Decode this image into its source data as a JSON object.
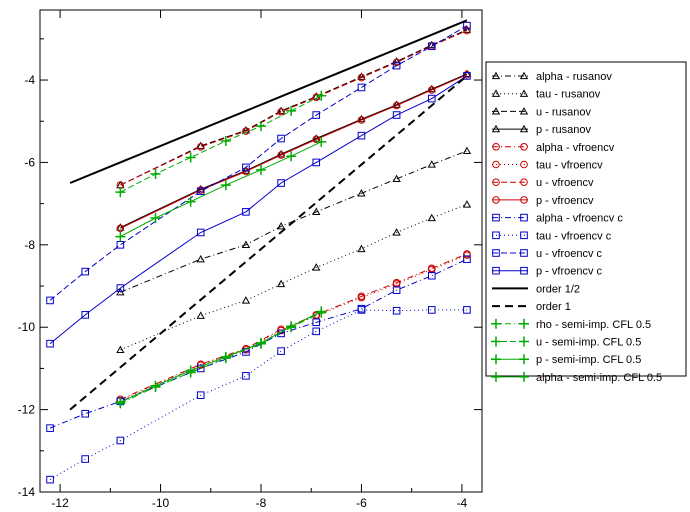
{
  "chart_data": {
    "type": "line",
    "title": "",
    "xlabel": "",
    "ylabel": "",
    "xlim": [
      -12.4,
      -3.6
    ],
    "ylim": [
      -14,
      -2.3
    ],
    "xticks": [
      -12,
      -10,
      -8,
      -6,
      -4
    ],
    "yticks": [
      -14,
      -12,
      -10,
      -8,
      -6,
      -4
    ],
    "grid": false,
    "legend_position": "right-outside",
    "series": [
      {
        "name": "alpha - rusanov",
        "color": "#000000",
        "dash": "6,3,1,3",
        "marker": "triangle",
        "x": [
          -10.8,
          -9.2,
          -8.3,
          -7.6,
          -6.9,
          -6.0,
          -5.3,
          -4.6,
          -3.9
        ],
        "y": [
          -9.15,
          -8.35,
          -8.0,
          -7.55,
          -7.2,
          -6.75,
          -6.4,
          -6.05,
          -5.72
        ]
      },
      {
        "name": "tau - rusanov",
        "color": "#000000",
        "dash": "1,3",
        "marker": "triangle",
        "x": [
          -10.8,
          -9.2,
          -8.3,
          -7.6,
          -6.9,
          -6.0,
          -5.3,
          -4.6,
          -3.9
        ],
        "y": [
          -10.55,
          -9.72,
          -9.35,
          -8.95,
          -8.55,
          -8.1,
          -7.7,
          -7.35,
          -7.02
        ]
      },
      {
        "name": "u - rusanov",
        "color": "#000000",
        "dash": "6,3",
        "marker": "triangle",
        "x": [
          -10.8,
          -9.2,
          -8.3,
          -7.6,
          -6.9,
          -6.0,
          -5.3,
          -4.6,
          -3.9
        ],
        "y": [
          -6.55,
          -5.6,
          -5.22,
          -4.75,
          -4.4,
          -3.92,
          -3.55,
          -3.15,
          -2.78
        ]
      },
      {
        "name": "p - rusanov",
        "color": "#000000",
        "dash": "",
        "marker": "triangle",
        "x": [
          -10.8,
          -9.2,
          -8.3,
          -7.6,
          -6.9,
          -6.0,
          -5.3,
          -4.6,
          -3.9
        ],
        "y": [
          -7.58,
          -6.65,
          -6.2,
          -5.8,
          -5.42,
          -4.95,
          -4.6,
          -4.22,
          -3.85
        ]
      },
      {
        "name": "alpha - vfroencv",
        "color": "#cc0000",
        "dash": "6,3,1,3",
        "marker": "circle",
        "x": [
          -10.8,
          -9.2,
          -8.3,
          -7.6,
          -6.9,
          -6.0,
          -5.3,
          -4.6,
          -3.9
        ],
        "y": [
          -11.75,
          -10.9,
          -10.52,
          -10.05,
          -9.7,
          -9.25,
          -8.92,
          -8.57,
          -8.22
        ]
      },
      {
        "name": "tau - vfroencv",
        "color": "#cc0000",
        "dash": "1,3",
        "marker": "circle",
        "x": [
          -10.8,
          -9.2,
          -8.3,
          -7.6,
          -6.9,
          -6.0,
          -5.3,
          -4.6,
          -3.9
        ],
        "y": [
          -11.78,
          -10.92,
          -10.55,
          -10.08,
          -9.72,
          -9.28,
          -8.95,
          -8.6,
          -8.25
        ]
      },
      {
        "name": "u - vfroencv",
        "color": "#cc0000",
        "dash": "6,3",
        "marker": "circle",
        "x": [
          -10.8,
          -9.2,
          -8.3,
          -7.6,
          -6.9,
          -6.0,
          -5.3,
          -4.6,
          -3.9
        ],
        "y": [
          -6.55,
          -5.62,
          -5.24,
          -4.77,
          -4.42,
          -3.94,
          -3.57,
          -3.17,
          -2.8
        ]
      },
      {
        "name": "p - vfroencv",
        "color": "#cc0000",
        "dash": "",
        "marker": "circle",
        "x": [
          -10.8,
          -9.2,
          -8.3,
          -7.6,
          -6.9,
          -6.0,
          -5.3,
          -4.6,
          -3.9
        ],
        "y": [
          -7.6,
          -6.67,
          -6.22,
          -5.82,
          -5.44,
          -4.97,
          -4.62,
          -4.24,
          -3.87
        ]
      },
      {
        "name": "alpha - vfroencv c",
        "color": "#0000cc",
        "dash": "6,3,1,3",
        "marker": "square",
        "x": [
          -12.2,
          -11.5,
          -10.8,
          -9.2,
          -8.3,
          -7.6,
          -6.9,
          -6.0,
          -5.3,
          -4.6,
          -3.9
        ],
        "y": [
          -12.45,
          -12.1,
          -11.8,
          -11.0,
          -10.6,
          -10.15,
          -9.88,
          -9.55,
          -9.1,
          -8.75,
          -8.35
        ]
      },
      {
        "name": "tau - vfroencv c",
        "color": "#0000cc",
        "dash": "1,3",
        "marker": "square",
        "x": [
          -12.2,
          -11.5,
          -10.8,
          -9.2,
          -8.3,
          -7.6,
          -6.9,
          -6.0,
          -5.3,
          -4.6,
          -3.9
        ],
        "y": [
          -13.7,
          -13.2,
          -12.75,
          -11.65,
          -11.18,
          -10.58,
          -10.1,
          -9.58,
          -9.6,
          -9.58,
          -9.58
        ]
      },
      {
        "name": "u - vfroencv c",
        "color": "#0000cc",
        "dash": "6,3",
        "marker": "square",
        "x": [
          -12.2,
          -11.5,
          -10.8,
          -9.2,
          -8.3,
          -7.6,
          -6.9,
          -6.0,
          -5.3,
          -4.6,
          -3.9
        ],
        "y": [
          -9.35,
          -8.65,
          -8.0,
          -6.7,
          -6.12,
          -5.42,
          -4.85,
          -4.18,
          -3.65,
          -3.18,
          -2.68
        ]
      },
      {
        "name": "p - vfroencv c",
        "color": "#0000cc",
        "dash": "",
        "marker": "square",
        "x": [
          -12.2,
          -11.5,
          -10.8,
          -9.2,
          -8.3,
          -7.6,
          -6.9,
          -6.0,
          -5.3,
          -4.6,
          -3.9
        ],
        "y": [
          -10.4,
          -9.7,
          -9.05,
          -7.7,
          -7.2,
          -6.5,
          -6.0,
          -5.35,
          -4.85,
          -4.45,
          -3.9
        ]
      },
      {
        "name": "order 1/2",
        "color": "#000000",
        "dash": "",
        "marker": "none",
        "width": 2,
        "x": [
          -11.8,
          -3.9
        ],
        "y": [
          -6.5,
          -2.55
        ]
      },
      {
        "name": "order 1",
        "color": "#000000",
        "dash": "8,5",
        "marker": "none",
        "width": 2,
        "x": [
          -11.8,
          -3.9
        ],
        "y": [
          -12.0,
          -3.9
        ]
      },
      {
        "name": "rho - semi-imp. CFL 0.5",
        "color": "#00aa00",
        "dash": "6,3,1,3",
        "marker": "plus",
        "x": [
          -10.8,
          -10.1,
          -9.4,
          -8.7,
          -8.0,
          -7.4,
          -6.8
        ],
        "y": [
          -11.85,
          -11.45,
          -11.1,
          -10.75,
          -10.4,
          -10.0,
          -9.65
        ]
      },
      {
        "name": "u - semi-imp. CFL 0.5",
        "color": "#00aa00",
        "dash": "6,3",
        "marker": "plus",
        "x": [
          -10.8,
          -10.1,
          -9.4,
          -8.7,
          -8.0,
          -7.4,
          -6.8
        ],
        "y": [
          -6.72,
          -6.28,
          -5.88,
          -5.48,
          -5.12,
          -4.75,
          -4.38
        ]
      },
      {
        "name": "p - semi-imp. CFL 0.5",
        "color": "#00aa00",
        "dash": "",
        "marker": "plus",
        "x": [
          -10.8,
          -10.1,
          -9.4,
          -8.7,
          -8.0,
          -7.4,
          -6.8
        ],
        "y": [
          -7.8,
          -7.35,
          -6.95,
          -6.55,
          -6.18,
          -5.85,
          -5.5
        ]
      },
      {
        "name": "alpha - semi-imp. CFL 0.5",
        "color": "#00aa00",
        "dash": "",
        "marker": "plus",
        "x": [
          -10.8,
          -10.1,
          -9.4,
          -8.7,
          -8.0,
          -7.4,
          -6.8
        ],
        "y": [
          -11.82,
          -11.42,
          -11.05,
          -10.72,
          -10.38,
          -9.98,
          -9.62
        ]
      }
    ]
  }
}
